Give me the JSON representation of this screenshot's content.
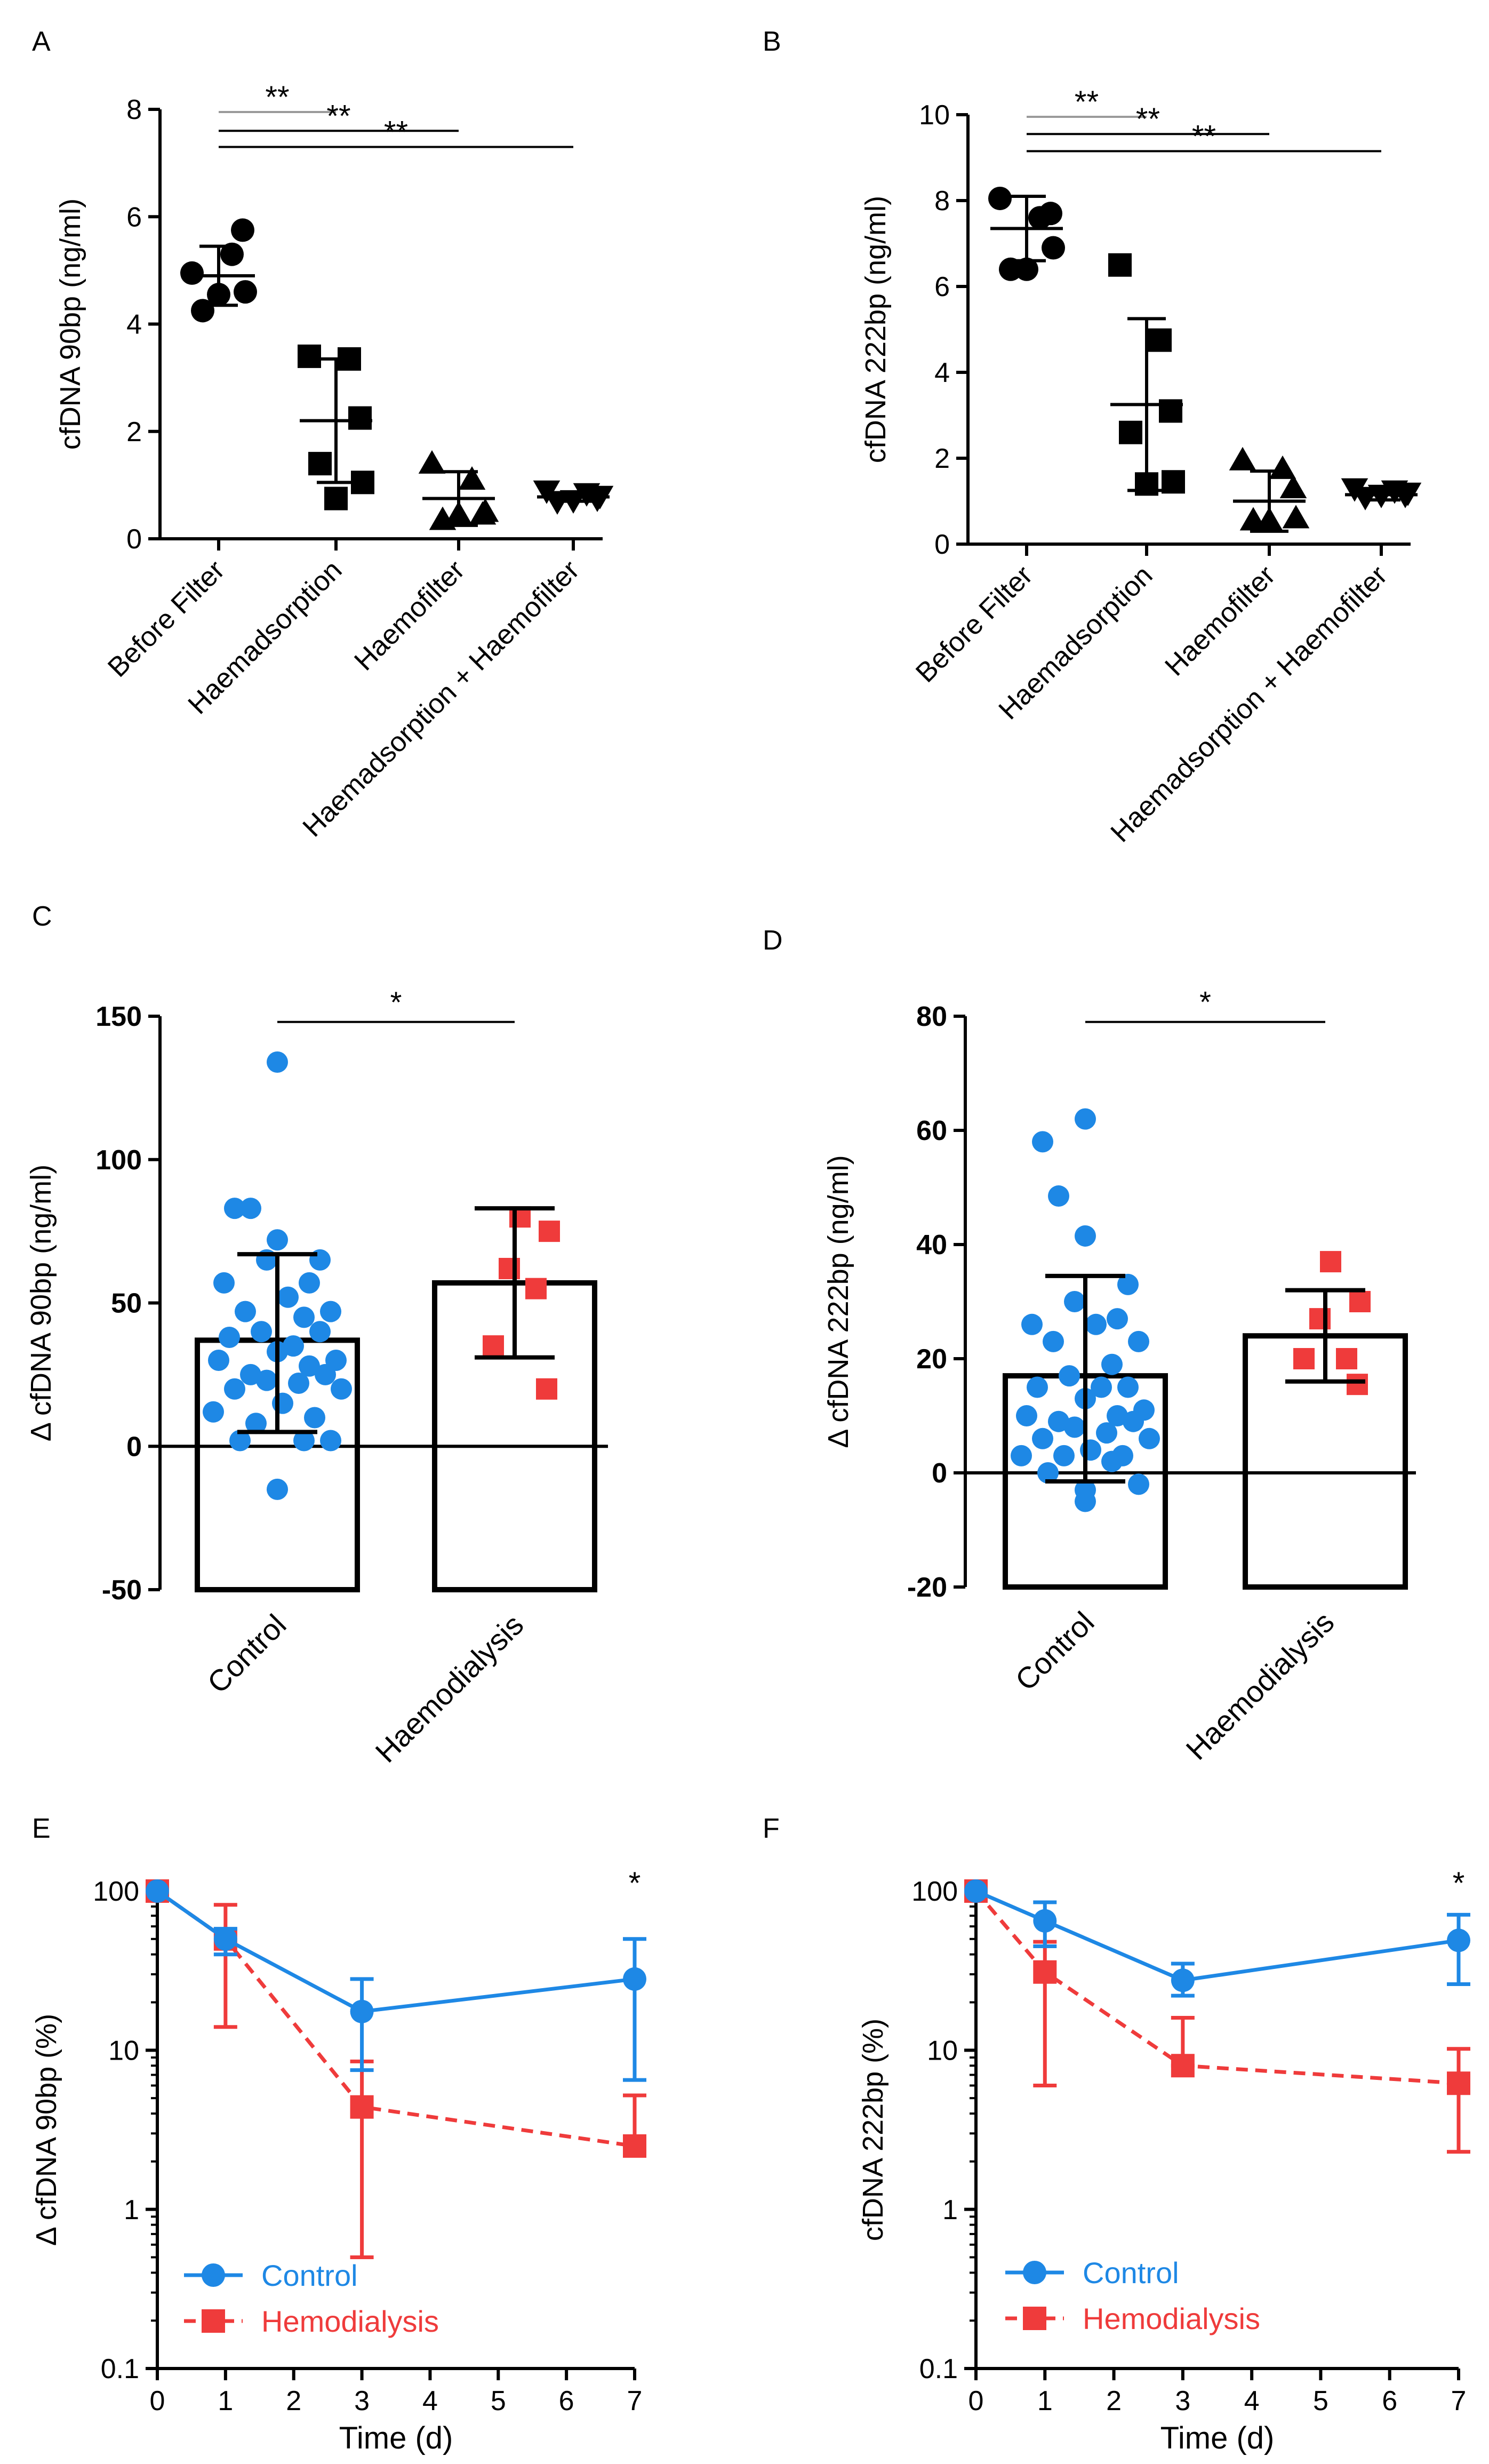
{
  "colors": {
    "black": "#000000",
    "control": "#1e88e5",
    "hemo": "#ef3b3b",
    "gray": "#9a9a9a"
  },
  "chart_data": [
    {
      "panel": "A",
      "type": "scatter",
      "ylabel": "cfDNA 90bp (ng/ml)",
      "ylim": [
        0,
        8
      ],
      "yticks": [
        "0",
        "2",
        "4",
        "6",
        "8"
      ],
      "categories": [
        "Before Filter",
        "Haemadsorption",
        "Haemofilter",
        "Haemadsorption + Haemofilter"
      ],
      "markers": [
        "circle",
        "square",
        "triangle",
        "triangle-down"
      ],
      "points": [
        [
          4.95,
          5.3,
          5.75,
          4.25,
          4.55,
          4.6
        ],
        [
          3.4,
          3.35,
          2.25,
          1.4,
          0.75,
          1.05
        ],
        [
          1.4,
          1.1,
          0.45,
          0.35,
          0.45,
          0.5
        ],
        [
          0.9,
          0.85,
          0.75,
          0.7,
          0.72,
          0.8
        ]
      ],
      "mean": [
        4.9,
        2.2,
        0.75,
        0.78
      ],
      "sd": [
        0.55,
        1.15,
        0.5,
        0.08
      ],
      "brackets": [
        {
          "from": 0,
          "to": 1,
          "y": 7.95,
          "label": "**",
          "gray": true
        },
        {
          "from": 0,
          "to": 2,
          "y": 7.6,
          "label": "**",
          "gray": false
        },
        {
          "from": 0,
          "to": 3,
          "y": 7.3,
          "label": "**",
          "gray": false
        }
      ]
    },
    {
      "panel": "B",
      "type": "scatter",
      "ylabel": "cfDNA 222bp (ng/ml)",
      "ylim": [
        0,
        10
      ],
      "yticks": [
        "0",
        "2",
        "4",
        "6",
        "8",
        "10"
      ],
      "categories": [
        "Before Filter",
        "Haemadsorption",
        "Haemofilter",
        "Haemadsorption + Haemofilter"
      ],
      "markers": [
        "circle",
        "square",
        "triangle",
        "triangle-down"
      ],
      "points": [
        [
          8.05,
          7.6,
          7.7,
          6.4,
          6.4,
          6.9
        ],
        [
          6.5,
          4.75,
          3.1,
          2.6,
          1.4,
          1.45
        ],
        [
          1.95,
          1.75,
          1.3,
          0.55,
          0.55,
          0.6
        ],
        [
          1.3,
          1.25,
          1.15,
          1.1,
          1.15,
          1.2
        ]
      ],
      "mean": [
        7.35,
        3.25,
        1.0,
        1.15
      ],
      "sd": [
        0.75,
        2.0,
        0.7,
        0.12
      ],
      "brackets": [
        {
          "from": 0,
          "to": 1,
          "y": 9.95,
          "label": "**",
          "gray": true
        },
        {
          "from": 0,
          "to": 2,
          "y": 9.55,
          "label": "**",
          "gray": false
        },
        {
          "from": 0,
          "to": 3,
          "y": 9.15,
          "label": "**",
          "gray": false
        }
      ]
    },
    {
      "panel": "C",
      "type": "bar",
      "ylabel": "Δ cfDNA 90bp (ng/ml)",
      "ylim": [
        -50,
        150
      ],
      "yticks": [
        "-50",
        "0",
        "50",
        "100",
        "150"
      ],
      "categories": [
        "Control",
        "Haemodialysis"
      ],
      "mean": [
        37,
        57
      ],
      "err_low": [
        5,
        31
      ],
      "err_high": [
        67,
        83
      ],
      "points": [
        [
          134,
          83,
          83,
          72,
          65,
          65,
          57,
          57,
          52,
          47,
          47,
          45,
          40,
          40,
          38,
          35,
          33,
          30,
          30,
          28,
          25,
          25,
          23,
          22,
          20,
          20,
          15,
          12,
          10,
          8,
          2,
          2,
          2,
          -15
        ],
        [
          80,
          75,
          62,
          55,
          35,
          20
        ]
      ],
      "significance": {
        "label": "*",
        "y": 148
      }
    },
    {
      "panel": "D",
      "type": "bar",
      "ylabel": "Δ cfDNA 222bp (ng/ml)",
      "ylim": [
        -20,
        80
      ],
      "yticks": [
        "-20",
        "0",
        "20",
        "40",
        "60",
        "80"
      ],
      "categories": [
        "Control",
        "Haemodialysis"
      ],
      "mean": [
        17,
        24
      ],
      "err_low": [
        -1.5,
        16
      ],
      "err_high": [
        34.5,
        32
      ],
      "points": [
        [
          62,
          58,
          48.5,
          41.5,
          33,
          30,
          27,
          26,
          26,
          23,
          23,
          19,
          17,
          15,
          15,
          15,
          13,
          11,
          10,
          10,
          9,
          9,
          8,
          7,
          6,
          6,
          4,
          3,
          3,
          3,
          2,
          0,
          -2,
          -3,
          -5
        ],
        [
          37,
          30,
          27,
          20,
          20,
          15.5
        ]
      ],
      "significance": {
        "label": "*",
        "y": 79
      }
    },
    {
      "panel": "E",
      "type": "line",
      "ylabel": "Δ cfDNA 90bp (%)",
      "xlabel": "Time (d)",
      "yscale": "log",
      "ylim": [
        0.1,
        100
      ],
      "yticks": [
        "0.1",
        "1",
        "10",
        "100"
      ],
      "xlim": [
        0,
        7
      ],
      "xticks": [
        "0",
        "1",
        "2",
        "3",
        "4",
        "5",
        "6",
        "7"
      ],
      "x": [
        0,
        1,
        3,
        7
      ],
      "series": [
        {
          "name": "Control",
          "values": [
            100,
            50,
            17.5,
            28
          ],
          "err_low": [
            100,
            40,
            7.5,
            6.5
          ],
          "err_high": [
            100,
            58,
            28,
            50
          ]
        },
        {
          "name": "Hemodialysis",
          "values": [
            100,
            50,
            4.4,
            2.5
          ],
          "err_low": [
            100,
            14,
            0.5,
            2.5
          ],
          "err_high": [
            100,
            82,
            8.5,
            5.2
          ]
        }
      ],
      "significance": {
        "label": "*",
        "x": 7
      },
      "legend": "bottom-left"
    },
    {
      "panel": "F",
      "type": "line",
      "ylabel": "cfDNA 222bp (%)",
      "xlabel": "Time (d)",
      "yscale": "log",
      "ylim": [
        0.1,
        100
      ],
      "yticks": [
        "0.1",
        "1",
        "10",
        "100"
      ],
      "xlim": [
        0,
        7
      ],
      "xticks": [
        "0",
        "1",
        "2",
        "3",
        "4",
        "5",
        "6",
        "7"
      ],
      "x": [
        0,
        1,
        3,
        7
      ],
      "series": [
        {
          "name": "Control",
          "values": [
            100,
            65,
            27.5,
            49
          ],
          "err_low": [
            100,
            45,
            22,
            26
          ],
          "err_high": [
            100,
            85,
            35,
            71
          ]
        },
        {
          "name": "Hemodialysis",
          "values": [
            100,
            31,
            8,
            6.2
          ],
          "err_low": [
            100,
            6,
            8,
            2.3
          ],
          "err_high": [
            100,
            48,
            16,
            10.2
          ]
        }
      ],
      "significance": {
        "label": "*",
        "x": 7
      },
      "legend": "bottom-left"
    }
  ]
}
